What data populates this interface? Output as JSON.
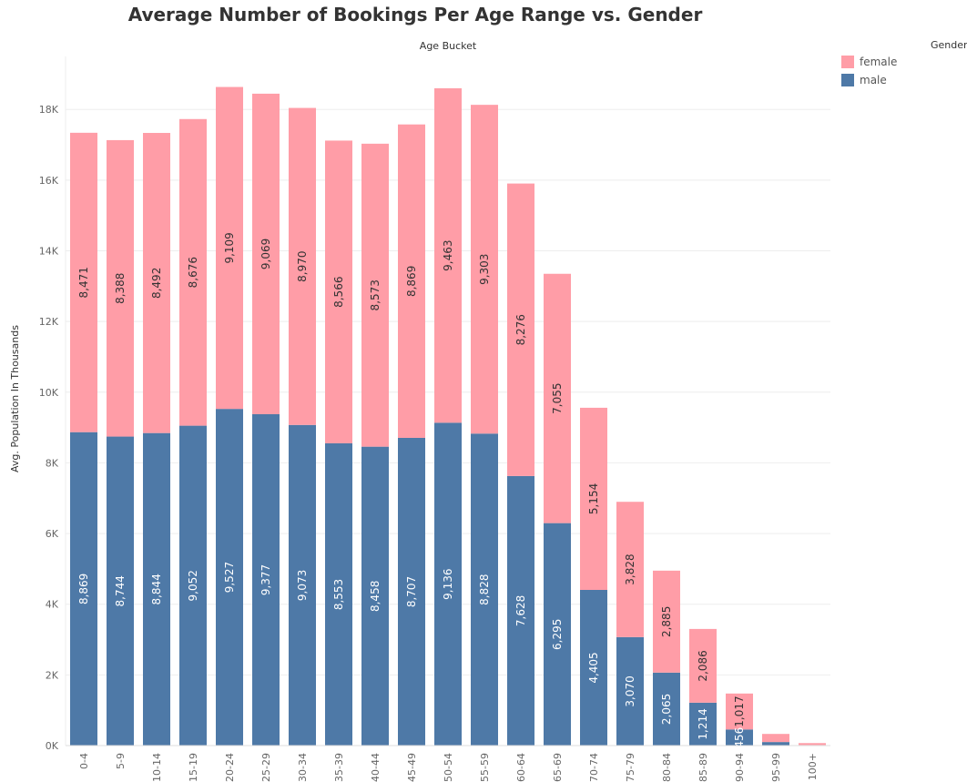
{
  "chart_data": {
    "type": "bar",
    "stacked": true,
    "title": "Average Number of Bookings Per Age Range vs. Gender",
    "top_label": "Age Bucket",
    "ylabel": "Avg. Population In Thousands",
    "ylim": [
      0,
      19500
    ],
    "yticks": [
      0,
      2000,
      4000,
      6000,
      8000,
      10000,
      12000,
      14000,
      16000,
      18000
    ],
    "ytick_labels": [
      "0K",
      "2K",
      "4K",
      "6K",
      "8K",
      "10K",
      "12K",
      "14K",
      "16K",
      "18K"
    ],
    "categories": [
      "0-4",
      "5-9",
      "10-14",
      "15-19",
      "20-24",
      "25-29",
      "30-34",
      "35-39",
      "40-44",
      "45-49",
      "50-54",
      "55-59",
      "60-64",
      "65-69",
      "70-74",
      "75-79",
      "80-84",
      "85-89",
      "90-94",
      "95-99",
      "100+"
    ],
    "series": [
      {
        "name": "male",
        "color": "#4e79a7",
        "label_color": "#ffffff",
        "values": [
          8869,
          8744,
          8844,
          9052,
          9527,
          9377,
          9073,
          8553,
          8458,
          8707,
          9136,
          8828,
          7628,
          6295,
          4405,
          3070,
          2065,
          1214,
          456,
          100,
          15
        ],
        "labels": [
          "8,869",
          "8,744",
          "8,844",
          "9,052",
          "9,527",
          "9,377",
          "9,073",
          "8,553",
          "8,458",
          "8,707",
          "9,136",
          "8,828",
          "7,628",
          "6,295",
          "4,405",
          "3,070",
          "2,065",
          "1,214",
          "456",
          "",
          ""
        ]
      },
      {
        "name": "female",
        "color": "#ff9da7",
        "label_color": "#333333",
        "values": [
          8471,
          8388,
          8492,
          8676,
          9109,
          9069,
          8970,
          8566,
          8573,
          8869,
          9463,
          9303,
          8276,
          7055,
          5154,
          3828,
          2885,
          2086,
          1017,
          230,
          55
        ],
        "labels": [
          "8,471",
          "8,388",
          "8,492",
          "8,676",
          "9,109",
          "9,069",
          "8,970",
          "8,566",
          "8,573",
          "8,869",
          "9,463",
          "9,303",
          "8,276",
          "7,055",
          "5,154",
          "3,828",
          "2,885",
          "2,086",
          "1,017",
          "",
          ""
        ]
      }
    ],
    "legend_title": "Gender",
    "legend_position": "top-right",
    "legend": [
      {
        "name": "female",
        "color": "#ff9da7"
      },
      {
        "name": "male",
        "color": "#4e79a7"
      }
    ],
    "grid": true
  }
}
